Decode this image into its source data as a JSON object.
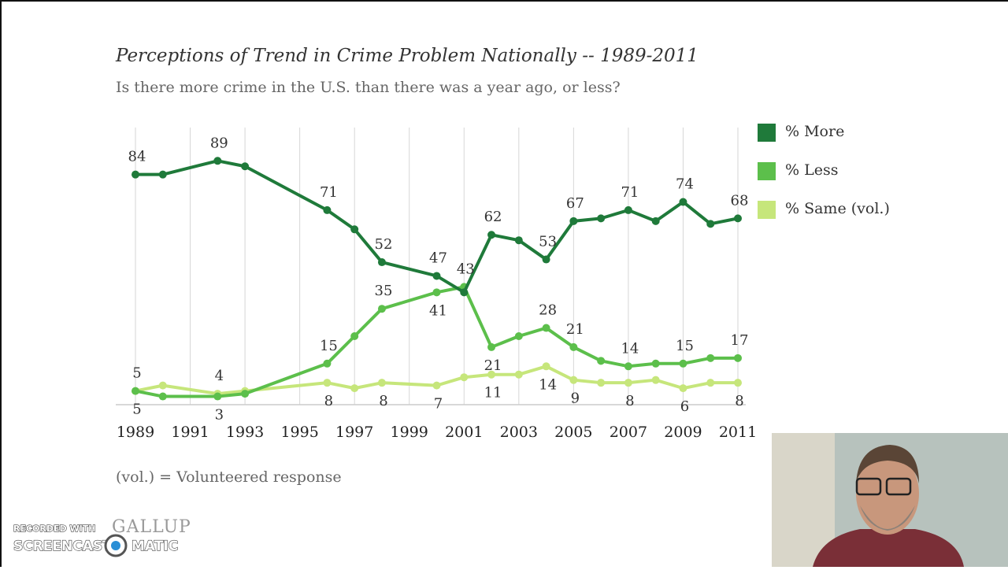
{
  "chart_data": {
    "type": "line",
    "title": "Perceptions of Trend in Crime Problem Nationally -- 1989-2011",
    "subtitle": "Is there more crime in the U.S. than there was a year ago, or less?",
    "x": [
      1989,
      1990,
      1992,
      1993,
      1996,
      1997,
      1998,
      2000,
      2001,
      2002,
      2003,
      2004,
      2005,
      2006,
      2007,
      2008,
      2009,
      2010,
      2011
    ],
    "xlim": [
      1989,
      2011
    ],
    "xticks": [
      1989,
      1991,
      1993,
      1995,
      1997,
      1999,
      2001,
      2003,
      2005,
      2007,
      2009,
      2011
    ],
    "ylim": [
      0,
      100
    ],
    "grid": true,
    "legend": "right",
    "series": [
      {
        "name": "% More",
        "color": "#1f7a3a",
        "values": [
          84,
          84,
          89,
          87,
          71,
          64,
          52,
          47,
          41,
          62,
          60,
          53,
          67,
          68,
          71,
          67,
          74,
          66,
          68
        ],
        "value_labels": [
          "84",
          null,
          "89",
          null,
          "71",
          null,
          "52",
          "47",
          null,
          "62",
          null,
          "53",
          "67",
          null,
          "71",
          null,
          "74",
          null,
          "68"
        ]
      },
      {
        "name": "% Less",
        "color": "#5cbf4b",
        "values": [
          5,
          3,
          3,
          4,
          15,
          25,
          35,
          41,
          43,
          21,
          25,
          28,
          21,
          16,
          14,
          15,
          15,
          17,
          17
        ],
        "value_labels": [
          "5",
          null,
          "3",
          null,
          "15",
          null,
          "35",
          "41",
          "43",
          "21",
          null,
          "28",
          "21",
          null,
          "14",
          null,
          "15",
          null,
          "17"
        ]
      },
      {
        "name": "% Same (vol.)",
        "color": "#c6e67b",
        "values": [
          5,
          7,
          4,
          5,
          8,
          6,
          8,
          7,
          10,
          11,
          11,
          14,
          9,
          8,
          8,
          9,
          6,
          8,
          8
        ],
        "value_labels": [
          "5",
          null,
          "4",
          null,
          "8",
          null,
          "8",
          "7",
          null,
          "11",
          null,
          "14",
          "9",
          null,
          "8",
          null,
          "6",
          null,
          "8"
        ]
      }
    ],
    "footnote": "(vol.) = Volunteered response",
    "logo": "GALLUP"
  },
  "watermark": {
    "line1": "RECORDED WITH",
    "line2a": "SCREENCAST",
    "line2b": "MATIC"
  }
}
